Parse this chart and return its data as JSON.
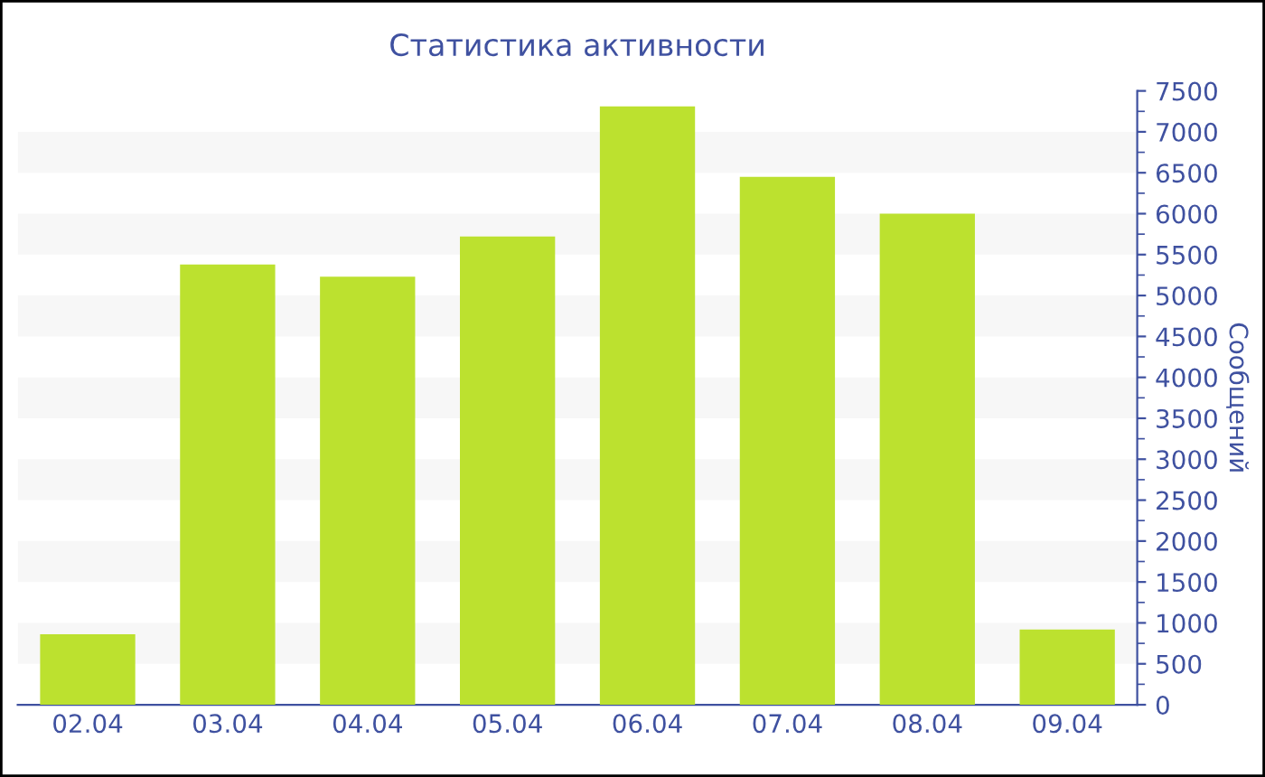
{
  "chart_data": {
    "type": "bar",
    "title": "Статистика активности",
    "ylabel": "Сообщений",
    "categories": [
      "02.04",
      "03.04",
      "04.04",
      "05.04",
      "06.04",
      "07.04",
      "08.04",
      "09.04"
    ],
    "values": [
      860,
      5380,
      5230,
      5720,
      7310,
      6450,
      6000,
      920
    ],
    "color": "#bce12f",
    "ylim": [
      0,
      7500
    ],
    "yticks": [
      0,
      500,
      1000,
      1500,
      2000,
      2500,
      3000,
      3500,
      4000,
      4500,
      5000,
      5500,
      6000,
      6500,
      7000,
      7500
    ],
    "bands": [
      {
        "axis": "y",
        "from": 500,
        "to": 1000,
        "color": "#f7f7f7"
      },
      {
        "axis": "y",
        "from": 1500,
        "to": 2000,
        "color": "#f7f7f7"
      },
      {
        "axis": "y",
        "from": 2500,
        "to": 3000,
        "color": "#f7f7f7"
      },
      {
        "axis": "y",
        "from": 3500,
        "to": 4000,
        "color": "#f7f7f7"
      },
      {
        "axis": "y",
        "from": 4500,
        "to": 5000,
        "color": "#f7f7f7"
      },
      {
        "axis": "y",
        "from": 5500,
        "to": 6000,
        "color": "#f7f7f7"
      },
      {
        "axis": "y",
        "from": 6500,
        "to": 7000,
        "color": "#f7f7f7"
      }
    ],
    "legend": false
  }
}
